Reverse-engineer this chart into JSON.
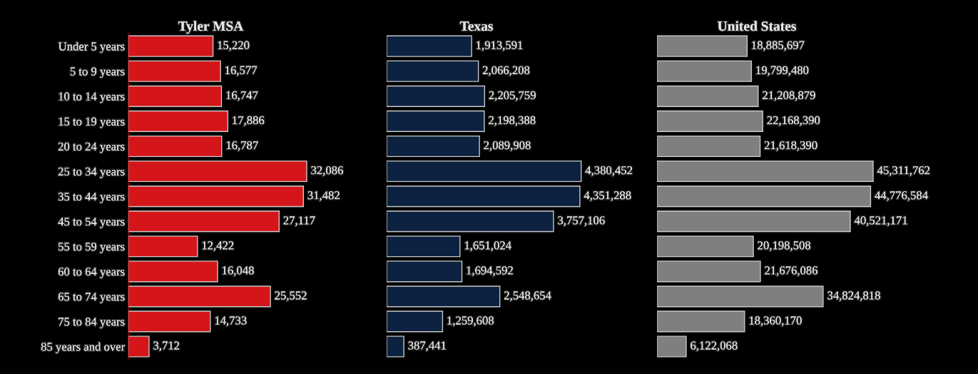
{
  "chart_data": [
    {
      "type": "bar",
      "orientation": "horizontal",
      "title": "Tyler MSA",
      "tick_labels": "y",
      "grid": false,
      "categories": [
        "Under 5 years",
        "5 to 9 years",
        "10 to 14 years",
        "15 to 19 years",
        "20 to 24 years",
        "25 to 34 years",
        "35 to 44 years",
        "45 to 54 years",
        "55 to 59 years",
        "60 to 64 years",
        "65 to 74 years",
        "75 to 84 years",
        "85 years and over"
      ],
      "series": [
        {
          "color": "#d4161a",
          "values": [
            15220,
            16577,
            16747,
            17886,
            16787,
            32086,
            31482,
            27117,
            12422,
            16048,
            25552,
            14733,
            3712
          ],
          "value_labels": [
            "15,220",
            "16,577",
            "16,747",
            "17,886",
            "16,787",
            "32,086",
            "31,482",
            "27,117",
            "12,422",
            "16,048",
            "25,552",
            "14,733",
            "3,712"
          ]
        }
      ]
    },
    {
      "type": "bar",
      "orientation": "horizontal",
      "title": "Texas",
      "tick_labels": false,
      "grid": false,
      "categories": [
        null,
        null,
        null,
        null,
        null,
        null,
        null,
        null,
        null,
        null,
        null,
        null,
        null
      ],
      "series": [
        {
          "color": "#0d2240",
          "values": [
            1913591,
            2066208,
            2205759,
            2198388,
            2089908,
            4380452,
            4351288,
            3757106,
            1651024,
            1694592,
            2548654,
            1259608,
            387441
          ],
          "value_labels": [
            "1,913,591",
            "2,066,208",
            "2,205,759",
            "2,198,388",
            "2,089,908",
            "4,380,452",
            "4,351,288",
            "3,757,106",
            "1,651,024",
            "1,694,592",
            "2,548,654",
            "1,259,608",
            "387,441"
          ]
        }
      ]
    },
    {
      "type": "bar",
      "orientation": "horizontal",
      "title": "United States",
      "tick_labels": false,
      "grid": false,
      "categories": [
        null,
        null,
        null,
        null,
        null,
        null,
        null,
        null,
        null,
        null,
        null,
        null,
        null
      ],
      "series": [
        {
          "color": "#7f7f7f",
          "values": [
            18885697,
            19799480,
            21208879,
            22168390,
            21618390,
            45311762,
            44776584,
            40521171,
            20198508,
            21676086,
            34824818,
            18360170,
            6122068
          ],
          "value_labels": [
            "18,885,697",
            "19,799,480",
            "21,208,879",
            "22,168,390",
            "21,618,390",
            "45,311,762",
            "44,776,584",
            "40,521,171",
            "20,198,508",
            "21,676,086",
            "34,824,818",
            "18,360,170",
            "6,122,068"
          ]
        }
      ]
    }
  ]
}
